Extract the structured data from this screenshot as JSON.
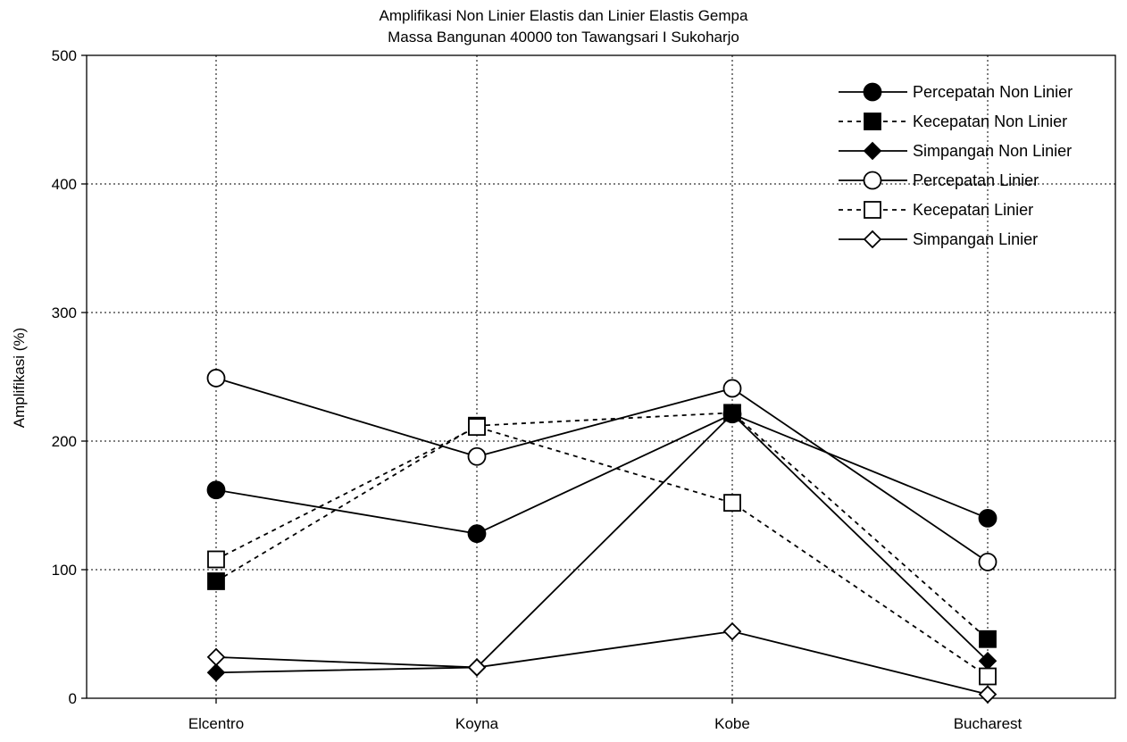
{
  "chart_data": {
    "type": "line",
    "title": "Amplifikasi Non Linier Elastis dan Linier Elastis Gempa",
    "subtitle": "Massa Bangunan 40000 ton Tawangsari I Sukoharjo",
    "xlabel": "",
    "ylabel": "Amplifikasi (%)",
    "ylim": [
      0,
      500
    ],
    "yticks": [
      0,
      100,
      200,
      300,
      400,
      500
    ],
    "categories": [
      "Elcentro",
      "Koyna",
      "Kobe",
      "Bucharest"
    ],
    "grid": true,
    "legend_position": "top-right",
    "series": [
      {
        "name": "Percepatan Non Linier",
        "values": [
          162,
          128,
          221,
          140
        ],
        "marker": "circle",
        "filled": true,
        "dashed": false,
        "color": "#000000"
      },
      {
        "name": "Kecepatan Non Linier",
        "values": [
          91,
          212,
          222,
          46
        ],
        "marker": "square",
        "filled": true,
        "dashed": true,
        "color": "#000000"
      },
      {
        "name": "Simpangan Non Linier",
        "values": [
          20,
          24,
          221,
          29
        ],
        "marker": "diamond",
        "filled": true,
        "dashed": false,
        "color": "#000000"
      },
      {
        "name": "Percepatan Linier",
        "values": [
          249,
          188,
          241,
          106
        ],
        "marker": "circle",
        "filled": false,
        "dashed": false,
        "color": "#000000"
      },
      {
        "name": "Kecepatan Linier",
        "values": [
          108,
          211,
          152,
          17
        ],
        "marker": "square",
        "filled": false,
        "dashed": true,
        "color": "#000000"
      },
      {
        "name": "Simpangan Linier",
        "values": [
          32,
          24,
          52,
          3
        ],
        "marker": "diamond",
        "filled": false,
        "dashed": false,
        "color": "#000000"
      }
    ]
  }
}
